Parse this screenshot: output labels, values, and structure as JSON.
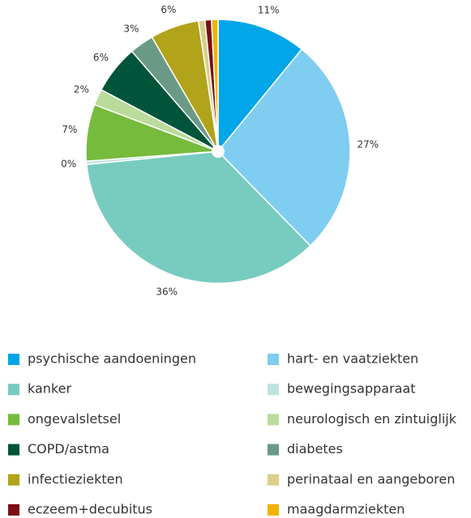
{
  "chart_data": {
    "type": "pie",
    "categories": [
      "psychische aandoeningen",
      "hart- en vaatziekten",
      "kanker",
      "bewegingsapparaat",
      "ongevalsletsel",
      "neurologisch en zintuiglijk",
      "COPD/astma",
      "diabetes",
      "infectieziekten",
      "perinataal en aangeboren",
      "eczeem+decubitus",
      "maagdarmziekten"
    ],
    "values": [
      11,
      27,
      36,
      0.4,
      7,
      2,
      6,
      3,
      6,
      0.8,
      0.8,
      0.8
    ],
    "value_labels": [
      "11%",
      "27%",
      "36%",
      "0%",
      "7%",
      "2%",
      "6%",
      "3%",
      "6%",
      null,
      null,
      null
    ],
    "colors": [
      "#00a6e8",
      "#7fcdf0",
      "#78cbbf",
      "#bfe4df",
      "#76bb3c",
      "#b9dc9b",
      "#00543a",
      "#6a9a86",
      "#b1a31a",
      "#d9cf8a",
      "#7a0e14",
      "#f0b400"
    ]
  }
}
